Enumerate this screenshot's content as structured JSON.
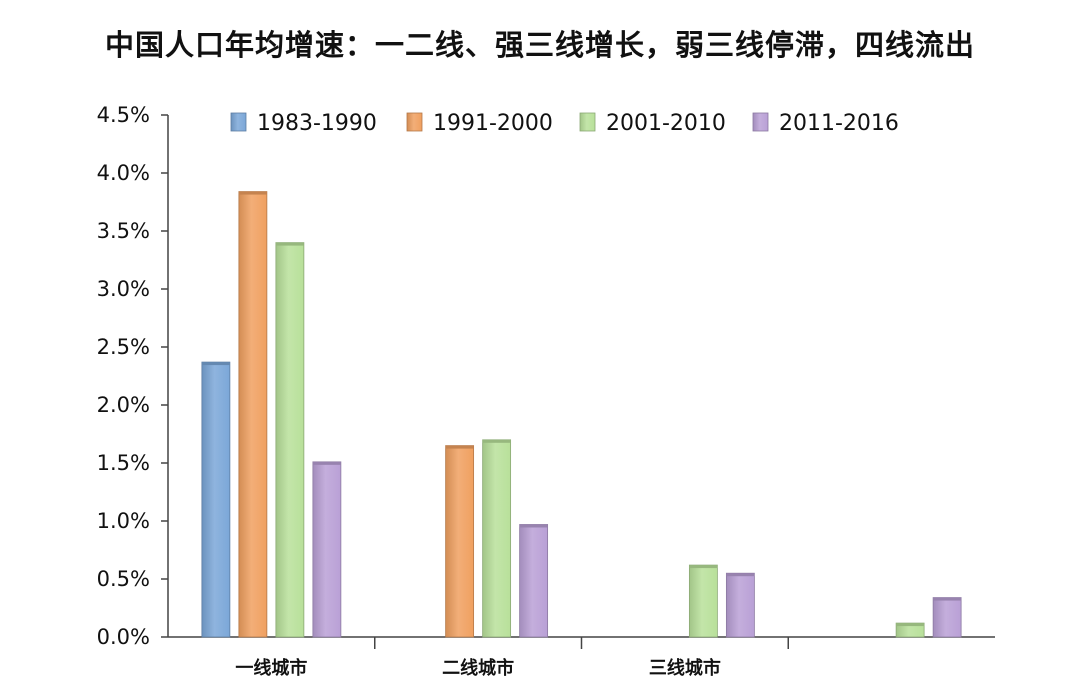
{
  "chart_data": {
    "type": "bar",
    "title": "中国人口年均增速：一二线、强三线增长，弱三线停滞，四线流出",
    "categories": [
      "一线城市",
      "二线城市",
      "三线城市",
      ""
    ],
    "series": [
      {
        "name": "1983-1990",
        "color": "#7ba7d8",
        "values": [
          2.37,
          null,
          null,
          null
        ]
      },
      {
        "name": "1991-2000",
        "color": "#f0a060",
        "values": [
          3.84,
          1.65,
          null,
          null
        ]
      },
      {
        "name": "2001-2010",
        "color": "#b8e09a",
        "values": [
          3.4,
          1.7,
          0.62,
          0.12
        ]
      },
      {
        "name": "2011-2016",
        "color": "#b9a0d6",
        "values": [
          1.51,
          0.97,
          0.55,
          0.34
        ]
      }
    ],
    "yticks": [
      "0.0%",
      "0.5%",
      "1.0%",
      "1.5%",
      "2.0%",
      "2.5%",
      "3.0%",
      "3.5%",
      "4.0%",
      "4.5%"
    ],
    "ylim": [
      0,
      4.5
    ],
    "xlabel": "",
    "ylabel": "",
    "grid": false,
    "legend_position": "top"
  }
}
